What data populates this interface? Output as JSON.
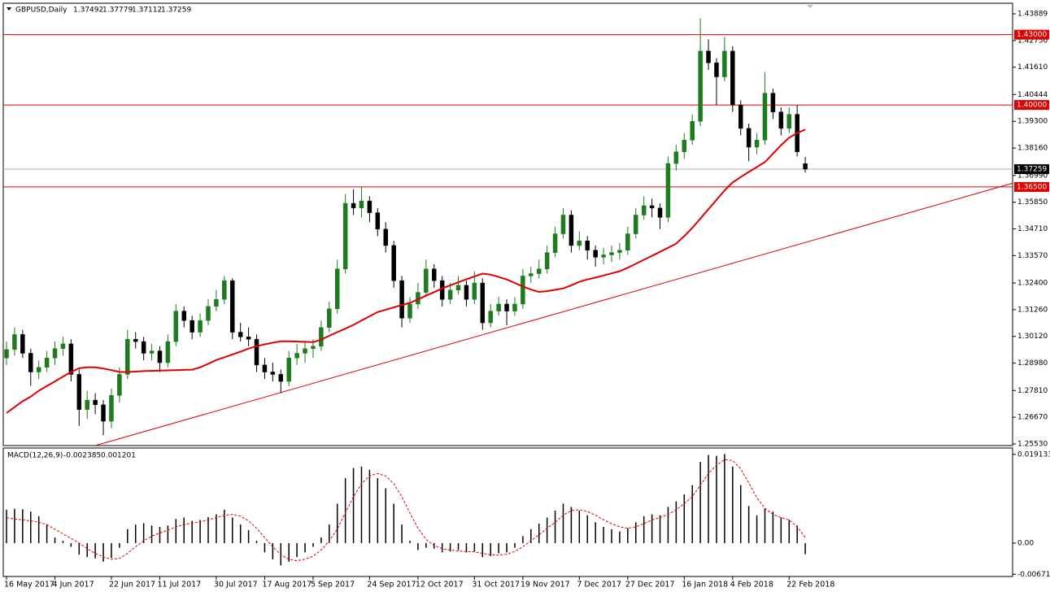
{
  "chart_data": {
    "type": "candlestick",
    "symbol": "GBPUSD,Daily",
    "categories": [
      "16 May 2017",
      null,
      null,
      null,
      null,
      null,
      "4 Jun 2017",
      null,
      null,
      null,
      null,
      null,
      null,
      "22 Jun 2017",
      null,
      null,
      null,
      null,
      null,
      "11 Jul 2017",
      null,
      null,
      null,
      null,
      null,
      null,
      "30 Jul 2017",
      null,
      null,
      null,
      null,
      null,
      "17 Aug 2017",
      null,
      null,
      null,
      null,
      null,
      "5 Sep 2017",
      null,
      null,
      null,
      null,
      null,
      null,
      "24 Sep 2017",
      null,
      null,
      null,
      null,
      null,
      "12 Oct 2017",
      null,
      null,
      null,
      null,
      null,
      null,
      "31 Oct 2017",
      null,
      null,
      null,
      null,
      null,
      "19 Nov 2017",
      null,
      null,
      null,
      null,
      null,
      null,
      "7 Dec 2017",
      null,
      null,
      null,
      null,
      null,
      "27 Dec 2017",
      null,
      null,
      null,
      null,
      null,
      null,
      "16 Jan 2018",
      null,
      null,
      null,
      null,
      null,
      "4 Feb 2018",
      null,
      null,
      null,
      null,
      null,
      null,
      "22 Feb 2018",
      null,
      null
    ],
    "ohlc": [
      [
        1.292,
        1.299,
        1.289,
        1.2956
      ],
      [
        1.2956,
        1.305,
        1.293,
        1.302
      ],
      [
        1.302,
        1.304,
        1.292,
        1.294
      ],
      [
        1.294,
        1.296,
        1.28,
        1.286
      ],
      [
        1.286,
        1.291,
        1.283,
        1.288
      ],
      [
        1.288,
        1.295,
        1.286,
        1.292
      ],
      [
        1.292,
        1.299,
        1.289,
        1.296
      ],
      [
        1.296,
        1.301,
        1.293,
        1.298
      ],
      [
        1.298,
        1.3,
        1.282,
        1.285
      ],
      [
        1.285,
        1.287,
        1.263,
        1.27
      ],
      [
        1.27,
        1.278,
        1.266,
        1.274
      ],
      [
        1.274,
        1.277,
        1.268,
        1.272
      ],
      [
        1.272,
        1.274,
        1.259,
        1.265
      ],
      [
        1.265,
        1.279,
        1.262,
        1.276
      ],
      [
        1.276,
        1.288,
        1.273,
        1.285
      ],
      [
        1.285,
        1.304,
        1.283,
        1.3
      ],
      [
        1.3,
        1.303,
        1.296,
        1.299
      ],
      [
        1.299,
        1.301,
        1.291,
        1.294
      ],
      [
        1.294,
        1.298,
        1.291,
        1.295
      ],
      [
        1.295,
        1.297,
        1.286,
        1.29
      ],
      [
        1.29,
        1.302,
        1.288,
        1.299
      ],
      [
        1.299,
        1.315,
        1.297,
        1.312
      ],
      [
        1.312,
        1.314,
        1.305,
        1.308
      ],
      [
        1.308,
        1.31,
        1.3,
        1.303
      ],
      [
        1.303,
        1.311,
        1.301,
        1.308
      ],
      [
        1.308,
        1.317,
        1.306,
        1.314
      ],
      [
        1.314,
        1.321,
        1.312,
        1.317
      ],
      [
        1.317,
        1.327,
        1.315,
        1.325
      ],
      [
        1.325,
        1.326,
        1.3,
        1.303
      ],
      [
        1.303,
        1.307,
        1.299,
        1.301
      ],
      [
        1.301,
        1.305,
        1.297,
        1.3
      ],
      [
        1.3,
        1.302,
        1.286,
        1.289
      ],
      [
        1.289,
        1.292,
        1.283,
        1.286
      ],
      [
        1.286,
        1.29,
        1.282,
        1.285
      ],
      [
        1.285,
        1.287,
        1.277,
        1.282
      ],
      [
        1.282,
        1.295,
        1.28,
        1.292
      ],
      [
        1.292,
        1.298,
        1.289,
        1.294
      ],
      [
        1.294,
        1.299,
        1.29,
        1.296
      ],
      [
        1.296,
        1.3,
        1.292,
        1.297
      ],
      [
        1.297,
        1.308,
        1.295,
        1.305
      ],
      [
        1.305,
        1.316,
        1.303,
        1.313
      ],
      [
        1.313,
        1.334,
        1.311,
        1.33
      ],
      [
        1.33,
        1.362,
        1.328,
        1.358
      ],
      [
        1.358,
        1.364,
        1.353,
        1.356
      ],
      [
        1.356,
        1.365,
        1.352,
        1.359
      ],
      [
        1.359,
        1.361,
        1.35,
        1.354
      ],
      [
        1.354,
        1.356,
        1.344,
        1.347
      ],
      [
        1.347,
        1.35,
        1.337,
        1.34
      ],
      [
        1.34,
        1.342,
        1.322,
        1.325
      ],
      [
        1.325,
        1.327,
        1.305,
        1.309
      ],
      [
        1.309,
        1.318,
        1.307,
        1.315
      ],
      [
        1.315,
        1.324,
        1.313,
        1.32
      ],
      [
        1.32,
        1.334,
        1.318,
        1.33
      ],
      [
        1.33,
        1.332,
        1.322,
        1.325
      ],
      [
        1.325,
        1.327,
        1.314,
        1.317
      ],
      [
        1.317,
        1.324,
        1.315,
        1.321
      ],
      [
        1.321,
        1.327,
        1.319,
        1.323
      ],
      [
        1.323,
        1.325,
        1.314,
        1.317
      ],
      [
        1.317,
        1.329,
        1.315,
        1.324
      ],
      [
        1.324,
        1.326,
        1.304,
        1.307
      ],
      [
        1.307,
        1.315,
        1.305,
        1.312
      ],
      [
        1.312,
        1.318,
        1.31,
        1.315
      ],
      [
        1.315,
        1.317,
        1.306,
        1.312
      ],
      [
        1.312,
        1.318,
        1.31,
        1.315
      ],
      [
        1.315,
        1.33,
        1.313,
        1.327
      ],
      [
        1.327,
        1.331,
        1.324,
        1.328
      ],
      [
        1.328,
        1.334,
        1.326,
        1.33
      ],
      [
        1.33,
        1.34,
        1.328,
        1.337
      ],
      [
        1.337,
        1.348,
        1.335,
        1.345
      ],
      [
        1.345,
        1.356,
        1.343,
        1.353
      ],
      [
        1.353,
        1.355,
        1.337,
        1.34
      ],
      [
        1.34,
        1.346,
        1.338,
        1.342
      ],
      [
        1.342,
        1.344,
        1.334,
        1.338
      ],
      [
        1.338,
        1.34,
        1.331,
        1.335
      ],
      [
        1.335,
        1.339,
        1.332,
        1.336
      ],
      [
        1.336,
        1.34,
        1.333,
        1.337
      ],
      [
        1.337,
        1.341,
        1.334,
        1.338
      ],
      [
        1.338,
        1.348,
        1.336,
        1.345
      ],
      [
        1.345,
        1.356,
        1.343,
        1.353
      ],
      [
        1.353,
        1.361,
        1.351,
        1.357
      ],
      [
        1.357,
        1.36,
        1.352,
        1.356
      ],
      [
        1.356,
        1.358,
        1.347,
        1.352
      ],
      [
        1.352,
        1.378,
        1.35,
        1.375
      ],
      [
        1.375,
        1.383,
        1.372,
        1.38
      ],
      [
        1.38,
        1.388,
        1.377,
        1.385
      ],
      [
        1.385,
        1.396,
        1.383,
        1.393
      ],
      [
        1.393,
        1.437,
        1.391,
        1.423
      ],
      [
        1.423,
        1.428,
        1.415,
        1.418
      ],
      [
        1.418,
        1.42,
        1.4,
        1.412
      ],
      [
        1.412,
        1.429,
        1.41,
        1.423
      ],
      [
        1.423,
        1.425,
        1.397,
        1.4
      ],
      [
        1.4,
        1.402,
        1.387,
        1.39
      ],
      [
        1.39,
        1.392,
        1.376,
        1.382
      ],
      [
        1.382,
        1.388,
        1.379,
        1.385
      ],
      [
        1.385,
        1.414,
        1.383,
        1.405
      ],
      [
        1.405,
        1.407,
        1.394,
        1.397
      ],
      [
        1.397,
        1.399,
        1.387,
        1.39
      ],
      [
        1.39,
        1.399,
        1.388,
        1.396
      ],
      [
        1.396,
        1.4,
        1.378,
        1.38
      ],
      [
        1.37492,
        1.37779,
        1.37112,
        1.37259
      ]
    ],
    "up_color": "#1e7b1e",
    "down_color": "#000000",
    "ylim": [
      1.2546,
      1.44341
    ],
    "yticks": [
      1.43889,
      {
        "value": 1.4275,
        "label": "1.42750"
      },
      {
        "value": 1.4161,
        "label": "1.41610"
      },
      1.40444,
      {
        "value": 1.393,
        "label": "1.39300"
      },
      {
        "value": 1.3816,
        "label": "1.38160"
      },
      {
        "value": 1.3699,
        "label": "1.36990"
      },
      {
        "value": 1.3585,
        "label": "1.35850"
      },
      {
        "value": 1.3471,
        "label": "1.34710"
      },
      {
        "value": 1.3357,
        "label": "1.33570"
      },
      {
        "value": 1.324,
        "label": "1.32400"
      },
      {
        "value": 1.3126,
        "label": "1.31260"
      },
      {
        "value": 1.3012,
        "label": "1.30120"
      },
      {
        "value": 1.2898,
        "label": "1.28980"
      },
      {
        "value": 1.2781,
        "label": "1.27810"
      },
      {
        "value": 1.2667,
        "label": "1.26670"
      },
      {
        "value": 1.2553,
        "label": "1.25530"
      }
    ],
    "moving_average": {
      "color": "#e00000",
      "values": [
        1.2685,
        1.271,
        1.2735,
        1.2755,
        1.278,
        1.28,
        1.282,
        1.284,
        1.286,
        1.2876,
        1.288,
        1.288,
        1.2875,
        1.2868,
        1.286,
        1.286,
        1.2862,
        1.2864,
        1.2865,
        1.2866,
        1.2867,
        1.2868,
        1.2869,
        1.287,
        1.288,
        1.2895,
        1.2911,
        1.2923,
        1.2935,
        1.2947,
        1.296,
        1.297,
        1.2978,
        1.2985,
        1.2991,
        1.2991,
        1.299,
        1.2989,
        1.2988,
        1.2998,
        1.3015,
        1.303,
        1.3045,
        1.3061,
        1.308,
        1.3098,
        1.3116,
        1.3126,
        1.3136,
        1.3146,
        1.3155,
        1.317,
        1.3186,
        1.3201,
        1.3217,
        1.323,
        1.3243,
        1.3256,
        1.3268,
        1.328,
        1.3276,
        1.3266,
        1.3255,
        1.324,
        1.3225,
        1.3212,
        1.3202,
        1.3205,
        1.3211,
        1.3217,
        1.323,
        1.3245,
        1.3255,
        1.3263,
        1.3272,
        1.3281,
        1.329,
        1.3305,
        1.3322,
        1.3339,
        1.3356,
        1.3373,
        1.339,
        1.3408,
        1.344,
        1.3475,
        1.3515,
        1.3555,
        1.3595,
        1.3635,
        1.3669,
        1.3692,
        1.3714,
        1.3735,
        1.3756,
        1.3792,
        1.3828,
        1.386,
        1.388,
        1.3895
      ]
    },
    "levels": [
      {
        "value": 1.43,
        "label": "1.43000"
      },
      {
        "value": 1.4,
        "label": "1.40000"
      },
      {
        "value": 1.365,
        "label": "1.36500"
      }
    ],
    "level_color": "#e00000",
    "trendline": {
      "x": [
        11,
        125
      ],
      "y": [
        1.2546,
        1.3669
      ],
      "color": "#e00000"
    },
    "macd": {
      "title": "MACD(12,26,9)",
      "hist_color": "#000000",
      "signal_color": "#e00000",
      "ylim": [
        -0.0072,
        0.0205
      ],
      "yticks": [
        0.019133,
        {
          "value": 0,
          "label": "0.00"
        },
        -0.006718
      ],
      "histogram": [
        0.0072,
        0.0074,
        0.0073,
        0.0068,
        0.0058,
        0.004,
        0.0012,
        0.0005,
        -0.0008,
        -0.0025,
        -0.003,
        -0.0033,
        -0.004,
        -0.0032,
        -0.001,
        0.003,
        0.004,
        0.0043,
        0.0038,
        0.0035,
        0.0038,
        0.0052,
        0.0055,
        0.0048,
        0.005,
        0.0056,
        0.0062,
        0.0072,
        0.0055,
        0.004,
        0.0028,
        0.0005,
        -0.002,
        -0.0035,
        -0.0048,
        -0.004,
        -0.003,
        -0.002,
        -0.0008,
        0.0012,
        0.004,
        0.0085,
        0.014,
        0.0162,
        0.0165,
        0.0158,
        0.014,
        0.0118,
        0.0085,
        0.004,
        0.0005,
        -0.0015,
        -0.001,
        -0.0012,
        -0.002,
        -0.0018,
        -0.0015,
        -0.002,
        -0.0018,
        -0.003,
        -0.0028,
        -0.0022,
        -0.002,
        -0.001,
        0.0015,
        0.003,
        0.0042,
        0.0055,
        0.007,
        0.0085,
        0.0078,
        0.007,
        0.006,
        0.0045,
        0.0035,
        0.003,
        0.0025,
        0.0032,
        0.0045,
        0.0058,
        0.0062,
        0.006,
        0.0078,
        0.009,
        0.0105,
        0.0125,
        0.0175,
        0.019,
        0.0188,
        0.0192,
        0.0165,
        0.0125,
        0.008,
        0.006,
        0.0075,
        0.0068,
        0.0055,
        0.005,
        0.0038,
        -0.002385
      ],
      "signal": [
        0.0055,
        0.0052,
        0.005,
        0.0048,
        0.0045,
        0.004,
        0.003,
        0.002,
        0.001,
        0.0,
        -0.0012,
        -0.0022,
        -0.003,
        -0.0035,
        -0.0033,
        -0.0022,
        -0.0008,
        0.0005,
        0.0015,
        0.0022,
        0.0028,
        0.0035,
        0.004,
        0.0043,
        0.0046,
        0.005,
        0.0055,
        0.006,
        0.0062,
        0.0058,
        0.0048,
        0.0032,
        0.0012,
        -0.0008,
        -0.0025,
        -0.0035,
        -0.0038,
        -0.0035,
        -0.0028,
        -0.0015,
        0.0005,
        0.003,
        0.0065,
        0.01,
        0.0128,
        0.0145,
        0.015,
        0.0145,
        0.0128,
        0.01,
        0.0065,
        0.0032,
        0.0008,
        -0.0005,
        -0.0012,
        -0.0015,
        -0.0017,
        -0.0018,
        -0.0019,
        -0.0022,
        -0.0025,
        -0.0026,
        -0.0024,
        -0.0018,
        -0.0008,
        0.0005,
        0.0018,
        0.0032,
        0.0045,
        0.006,
        0.007,
        0.0072,
        0.0068,
        0.006,
        0.005,
        0.0042,
        0.0035,
        0.0032,
        0.0035,
        0.0042,
        0.005,
        0.0055,
        0.0062,
        0.0072,
        0.0085,
        0.01,
        0.0125,
        0.015,
        0.0168,
        0.018,
        0.0178,
        0.016,
        0.013,
        0.0098,
        0.0075,
        0.0062,
        0.0055,
        0.005,
        0.0035,
        0.001201
      ]
    }
  }
}
